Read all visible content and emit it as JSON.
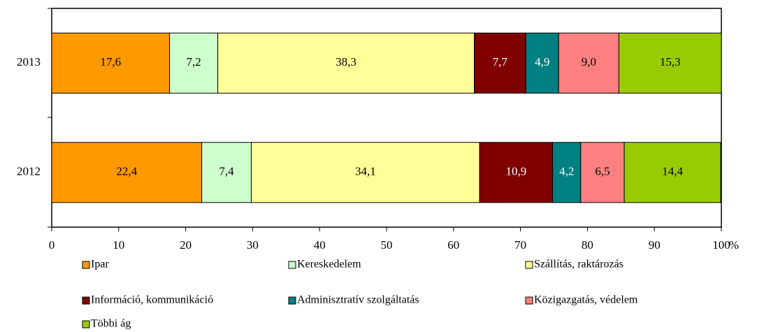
{
  "chart_data": {
    "type": "stacked-bar-horizontal",
    "categories": [
      "2013",
      "2012"
    ],
    "series": [
      {
        "name": "Ipar",
        "color": "#ff9900",
        "values": [
          17.6,
          22.4
        ],
        "value_labels": [
          "17,6",
          "22,4"
        ]
      },
      {
        "name": "Kereskedelem",
        "color": "#ccffcc",
        "values": [
          7.2,
          7.4
        ],
        "value_labels": [
          "7,2",
          "7,4"
        ]
      },
      {
        "name": "Szállítás, raktározás",
        "color": "#ffff99",
        "values": [
          38.3,
          34.1
        ],
        "value_labels": [
          "38,3",
          "34,1"
        ]
      },
      {
        "name": "Információ, kommunikáció",
        "color": "#800000",
        "values": [
          7.7,
          10.9
        ],
        "value_labels": [
          "7,7",
          "10,9"
        ]
      },
      {
        "name": "Adminisztratív szolgáltatás",
        "color": "#008080",
        "values": [
          4.9,
          4.2
        ],
        "value_labels": [
          "4,9",
          "4,2"
        ]
      },
      {
        "name": "Közigazgatás, védelem",
        "color": "#ff8080",
        "values": [
          9.0,
          6.5
        ],
        "value_labels": [
          "9,0",
          "6,5"
        ]
      },
      {
        "name": "Többi ág",
        "color": "#99cc00",
        "values": [
          15.3,
          14.4
        ],
        "value_labels": [
          "15,3",
          "14,4"
        ]
      }
    ],
    "xlim": [
      0,
      100
    ],
    "xticks": [
      0,
      10,
      20,
      30,
      40,
      50,
      60,
      70,
      80,
      90,
      100
    ],
    "xlabel": "%",
    "grid": false,
    "legend": "bottom"
  }
}
